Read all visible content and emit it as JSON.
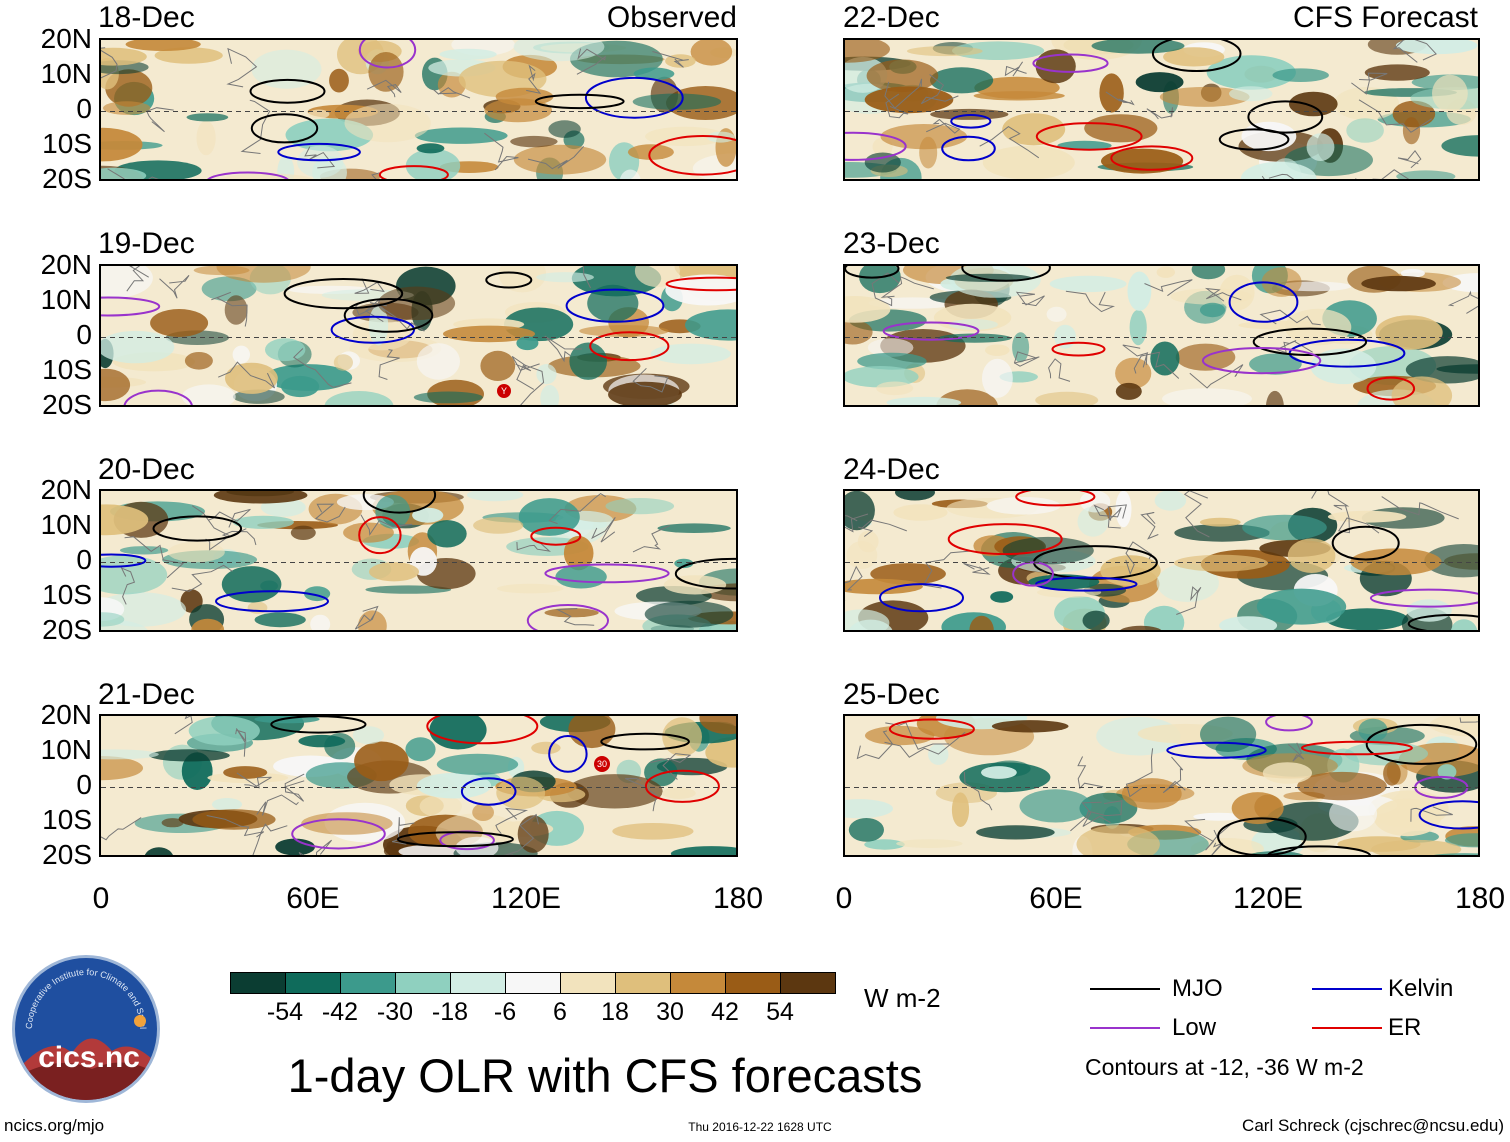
{
  "panels_left": [
    {
      "date": "18-Dec",
      "corner": "Observed"
    },
    {
      "date": "19-Dec",
      "corner": ""
    },
    {
      "date": "20-Dec",
      "corner": ""
    },
    {
      "date": "21-Dec",
      "corner": ""
    }
  ],
  "panels_right": [
    {
      "date": "22-Dec",
      "corner": "CFS Forecast"
    },
    {
      "date": "23-Dec",
      "corner": ""
    },
    {
      "date": "24-Dec",
      "corner": ""
    },
    {
      "date": "25-Dec",
      "corner": ""
    }
  ],
  "lat_labels": [
    "20N",
    "10N",
    "0",
    "10S",
    "20S"
  ],
  "lon_labels": [
    "0",
    "60E",
    "120E",
    "180"
  ],
  "markers": {
    "m19": "Y",
    "m21": "30"
  },
  "colorbar": {
    "colors": [
      "#0b3d32",
      "#0f6b5b",
      "#3c9a8c",
      "#8fd0bf",
      "#d2ede4",
      "#f7f7f7",
      "#f2e3bd",
      "#dfbf7c",
      "#c5893a",
      "#9a5c16",
      "#5c3710"
    ],
    "labels": [
      "-54",
      "-42",
      "-30",
      "-18",
      "-6",
      "6",
      "18",
      "30",
      "42",
      "54"
    ],
    "units": "W m-2"
  },
  "title": "1-day OLR with CFS forecasts",
  "legend": {
    "items": [
      {
        "label": "MJO",
        "color": "#000000"
      },
      {
        "label": "Kelvin",
        "color": "#0000cc"
      },
      {
        "label": "Low",
        "color": "#9933cc"
      },
      {
        "label": "ER",
        "color": "#e00000"
      }
    ],
    "note": "Contours at -12, -36 W m-2"
  },
  "logo": {
    "text": "cics.nc",
    "ring": "Cooperative Institute for Climate and Satellites"
  },
  "footer": {
    "left": "ncics.org/mjo",
    "center": "Thu 2016-12-22 1628 UTC",
    "right": "Carl Schreck (cjschrec@ncsu.edu)"
  }
}
